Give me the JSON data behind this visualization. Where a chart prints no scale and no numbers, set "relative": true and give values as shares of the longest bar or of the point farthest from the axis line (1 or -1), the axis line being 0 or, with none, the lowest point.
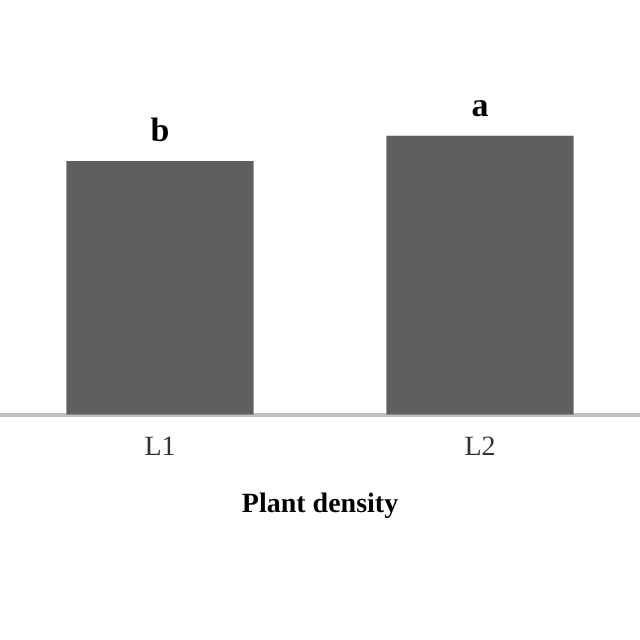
{
  "chart_data": {
    "type": "bar",
    "xlabel": "Plant density",
    "categories": [
      "L1",
      "L2"
    ],
    "values": [
      0.91,
      1
    ],
    "color": "#5f5f5f",
    "relative": true,
    "grid": false,
    "legend": false,
    "annotations": [
      {
        "text": "b",
        "x": "L1",
        "y": 0.91
      },
      {
        "text": "a",
        "x": "L2",
        "y": 1
      }
    ]
  }
}
